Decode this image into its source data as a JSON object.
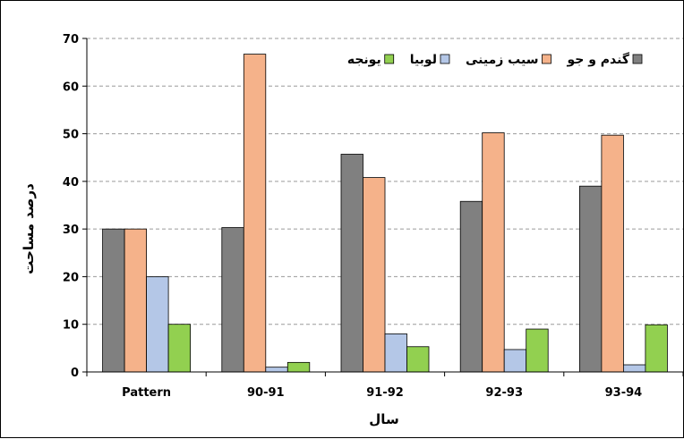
{
  "chart_data": {
    "type": "bar",
    "categories": [
      "Pattern",
      "90-91",
      "91-92",
      "92-93",
      "93-94"
    ],
    "series": [
      {
        "name": "گندم و جو",
        "color": "#808080",
        "values": [
          30,
          30.3,
          45.7,
          35.8,
          39
        ]
      },
      {
        "name": "سیب زمینی",
        "color": "#F5B28A",
        "values": [
          30,
          66.7,
          40.8,
          50.2,
          49.7
        ]
      },
      {
        "name": "لوبیا",
        "color": "#B4C7E7",
        "values": [
          20,
          1,
          8,
          4.7,
          1.5
        ]
      },
      {
        "name": "یونجه",
        "color": "#92D050",
        "values": [
          10,
          2,
          5.3,
          9,
          9.9
        ]
      }
    ],
    "title": "",
    "xlabel": "سال",
    "ylabel": "درصد مساحت",
    "ylim": [
      0,
      70
    ],
    "yticks": [
      0,
      10,
      20,
      30,
      40,
      50,
      60,
      70
    ],
    "grid": true,
    "legend_position": "top-right"
  }
}
